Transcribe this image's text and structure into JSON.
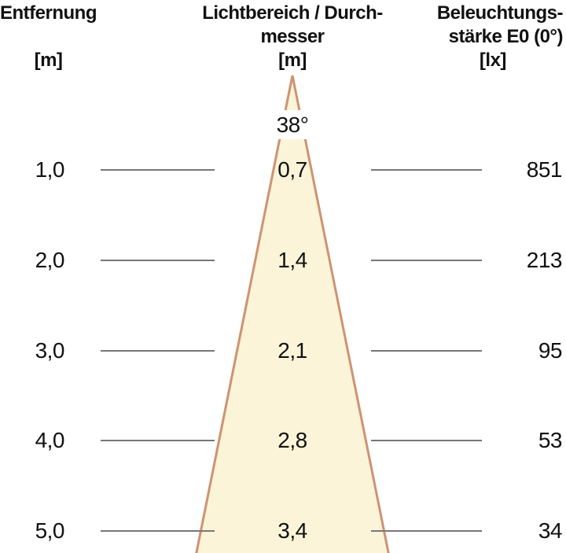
{
  "columns": {
    "distance": {
      "title": "Entfernung",
      "unit": "[m]"
    },
    "beam": {
      "title_line1": "Lichtbereich / Durch-",
      "title_line2": "messer",
      "unit": "[m]"
    },
    "illuminance": {
      "title_line1": "Beleuchtungs-",
      "title_line2": "stärke E0 (0°)",
      "unit": "[lx]"
    }
  },
  "beam_angle_label": "38°",
  "rows": [
    {
      "distance_m": "1,0",
      "diameter_m": "0,7",
      "illuminance_lx": "851"
    },
    {
      "distance_m": "2,0",
      "diameter_m": "1,4",
      "illuminance_lx": "213"
    },
    {
      "distance_m": "3,0",
      "diameter_m": "2,1",
      "illuminance_lx": "95"
    },
    {
      "distance_m": "4,0",
      "diameter_m": "2,8",
      "illuminance_lx": "53"
    },
    {
      "distance_m": "5,0",
      "diameter_m": "3,4",
      "illuminance_lx": "34"
    }
  ],
  "colors": {
    "cone_fill": "#FBF4D8",
    "cone_stroke": "#CE9372",
    "line": "#777777",
    "text": "#111111"
  },
  "chart_data": {
    "type": "table",
    "title": "Photometric beam diagram",
    "beam_angle_deg": 38,
    "columns": [
      "Entfernung [m]",
      "Lichtbereich / Durchmesser [m]",
      "Beleuchtungsstärke E0 (0°) [lx]"
    ],
    "records": [
      {
        "distance_m": 1.0,
        "beam_diameter_m": 0.7,
        "illuminance_lx": 851
      },
      {
        "distance_m": 2.0,
        "beam_diameter_m": 1.4,
        "illuminance_lx": 213
      },
      {
        "distance_m": 3.0,
        "beam_diameter_m": 2.1,
        "illuminance_lx": 95
      },
      {
        "distance_m": 4.0,
        "beam_diameter_m": 2.8,
        "illuminance_lx": 53
      },
      {
        "distance_m": 5.0,
        "beam_diameter_m": 3.4,
        "illuminance_lx": 34
      }
    ]
  }
}
